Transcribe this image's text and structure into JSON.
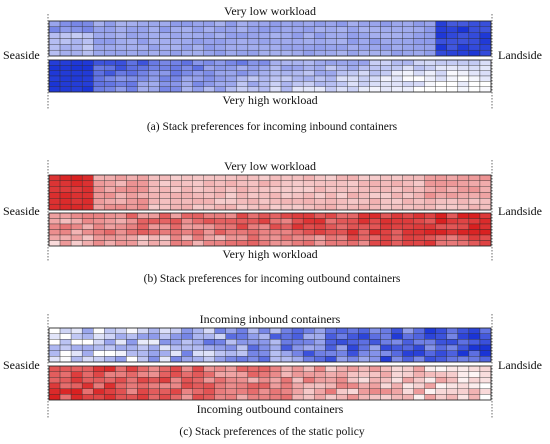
{
  "side_labels": {
    "left": "Seaside",
    "right": "Landside"
  },
  "panels": [
    {
      "id": "a",
      "top_label": "Very low workload",
      "bottom_label": "Very high workload",
      "caption": "(a) Stack preferences for incoming inbound containers",
      "upper_color": "#1a34d6",
      "lower_color": "#1a34d6"
    },
    {
      "id": "b",
      "top_label": "Very low workload",
      "bottom_label": "Very high workload",
      "caption": "(b) Stack preferences for incoming outbound containers",
      "upper_color": "#d92020",
      "lower_color": "#d92020"
    },
    {
      "id": "c",
      "top_label": "Incoming inbound containers",
      "bottom_label": "Incoming outbound containers",
      "caption": "(c) Stack preferences of the static policy",
      "upper_color": "#1a34d6",
      "lower_color": "#d92020"
    }
  ]
}
